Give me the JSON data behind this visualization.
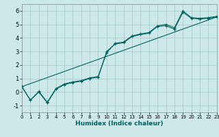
{
  "xlabel": "Humidex (Indice chaleur)",
  "bg_color": "#cce8e8",
  "grid_color": "#aacccc",
  "line_color": "#006060",
  "xlim": [
    0,
    23
  ],
  "ylim": [
    -1.5,
    6.5
  ],
  "xticks": [
    0,
    1,
    2,
    3,
    4,
    5,
    6,
    7,
    8,
    9,
    10,
    11,
    12,
    13,
    14,
    15,
    16,
    17,
    18,
    19,
    20,
    21,
    22,
    23
  ],
  "yticks": [
    -1,
    0,
    1,
    2,
    3,
    4,
    5,
    6
  ],
  "series1_x": [
    0,
    1,
    2,
    3,
    4,
    5,
    6,
    7,
    8,
    9,
    10,
    11,
    12,
    13,
    14,
    15,
    16,
    17,
    18,
    19,
    20,
    21,
    22,
    23
  ],
  "series1_y": [
    0.4,
    -0.6,
    0.0,
    -0.8,
    0.2,
    0.55,
    0.7,
    0.8,
    1.0,
    1.1,
    3.0,
    3.55,
    3.65,
    4.1,
    4.25,
    4.35,
    4.85,
    4.9,
    4.65,
    5.9,
    5.45,
    5.4,
    5.45,
    5.55
  ],
  "series2_x": [
    0,
    1,
    2,
    3,
    4,
    5,
    6,
    7,
    8,
    9,
    10,
    11,
    12,
    13,
    14,
    15,
    16,
    17,
    18,
    19,
    20,
    21,
    22,
    23
  ],
  "series2_y": [
    0.4,
    -0.6,
    0.05,
    -0.75,
    0.25,
    0.6,
    0.75,
    0.85,
    1.05,
    1.15,
    2.9,
    3.6,
    3.7,
    4.15,
    4.3,
    4.4,
    4.9,
    5.0,
    4.75,
    6.0,
    5.5,
    5.45,
    5.5,
    5.6
  ],
  "series3_x": [
    0,
    23
  ],
  "series3_y": [
    0.4,
    5.55
  ]
}
